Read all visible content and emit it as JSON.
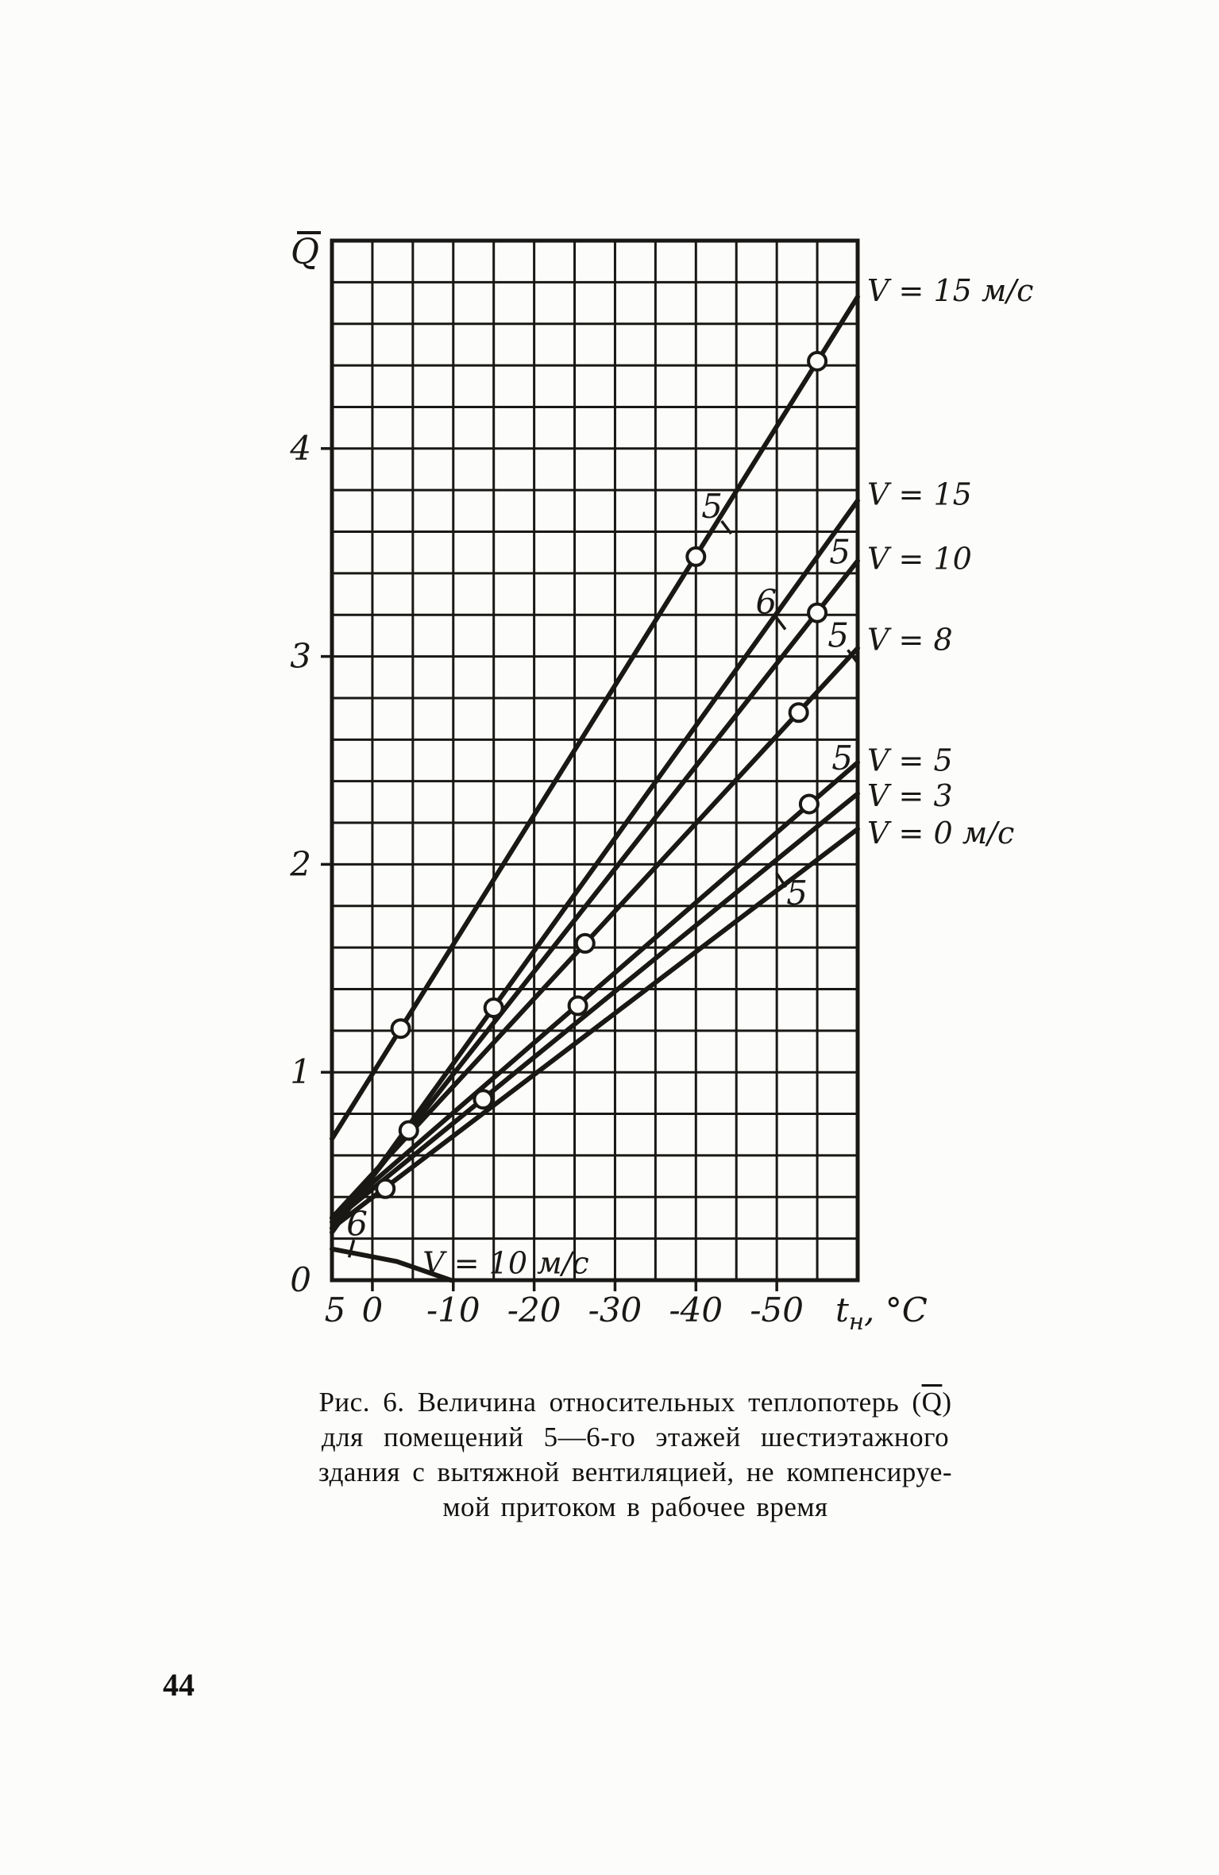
{
  "page": {
    "number": "44"
  },
  "caption": {
    "line1_before": "Рис. 6. Величина относительных теплопотерь (",
    "line1_q": "Q",
    "line1_after": ")",
    "line2": "для помещений 5—6-го этажей шестиэтажного",
    "line3": "здания с вытяжной вентиляцией, не компенсируе-",
    "line4": "мой притоком в рабочее время"
  },
  "chart_data": {
    "type": "line",
    "title": "Величина относительных теплопотерь Q для помещений 5-6-го этажей",
    "ylabel": "Q",
    "ylabel_overline": true,
    "xlabel_main": "t",
    "xlabel_sub": "н",
    "xlabel_unit": ", °С",
    "x_range": [
      5,
      -60
    ],
    "y_range": [
      0,
      5
    ],
    "grid": {
      "state": "on",
      "cols": 13,
      "rows": 25,
      "x_step_deg": 5,
      "y_step": 0.2
    },
    "x_ticks": [
      {
        "v": 5,
        "label": "5"
      },
      {
        "v": 0,
        "label": "0"
      },
      {
        "v": -10,
        "label": "-10"
      },
      {
        "v": -20,
        "label": "-20"
      },
      {
        "v": -30,
        "label": "-30"
      },
      {
        "v": -40,
        "label": "-40"
      },
      {
        "v": -50,
        "label": "-50"
      }
    ],
    "y_ticks": [
      {
        "v": 0,
        "label": "0"
      },
      {
        "v": 1,
        "label": "1"
      },
      {
        "v": 2,
        "label": "2"
      },
      {
        "v": 3,
        "label": "3"
      },
      {
        "v": 4,
        "label": "4"
      }
    ],
    "legend_position": "right-edge",
    "series": [
      {
        "name": "floor5-v15",
        "label": "V = 15 м/с",
        "label_q": 4.76,
        "points": [
          [
            5,
            0.68
          ],
          [
            -60,
            4.73
          ]
        ],
        "markers": [
          [
            -3.5,
            1.21
          ],
          [
            -40,
            3.48
          ],
          [
            -55,
            4.42
          ]
        ]
      },
      {
        "name": "floor6-v15",
        "label": "V = 15",
        "label_q": 3.78,
        "points": [
          [
            5,
            0.23
          ],
          [
            -60,
            3.75
          ]
        ],
        "markers": [
          [
            -15,
            1.31
          ]
        ]
      },
      {
        "name": "floor5-v10",
        "label": "V = 10",
        "label_q": 3.47,
        "points": [
          [
            5,
            0.25
          ],
          [
            -60,
            3.46
          ]
        ],
        "markers": [
          [
            -4.5,
            0.72
          ],
          [
            -55,
            3.21
          ]
        ]
      },
      {
        "name": "floor5-v8",
        "label": "V = 8",
        "label_q": 3.08,
        "points": [
          [
            5,
            0.3
          ],
          [
            -60,
            3.04
          ]
        ],
        "markers": [
          [
            -26.3,
            1.62
          ],
          [
            -52.7,
            2.73
          ]
        ]
      },
      {
        "name": "floor5-v5",
        "label": "V = 5",
        "label_q": 2.5,
        "points": [
          [
            5,
            0.3
          ],
          [
            -60,
            2.49
          ]
        ],
        "markers": [
          [
            -25.4,
            1.32
          ],
          [
            -54,
            2.29
          ]
        ]
      },
      {
        "name": "floor-v3",
        "label": "V = 3",
        "label_q": 2.33,
        "points": [
          [
            5,
            0.28
          ],
          [
            -60,
            2.34
          ]
        ],
        "markers": [
          [
            -13.7,
            0.87
          ]
        ]
      },
      {
        "name": "floor-v0",
        "label": "V = 0 м/с",
        "label_q": 2.15,
        "points": [
          [
            5,
            0.25
          ],
          [
            -60,
            2.17
          ]
        ],
        "markers": [
          [
            -1.6,
            0.44
          ]
        ]
      },
      {
        "name": "floor6-v10-bottom",
        "label": "",
        "label_q": null,
        "points": [
          [
            5,
            0.15
          ],
          [
            -3,
            0.09
          ],
          [
            -9.7,
            0
          ]
        ],
        "markers": []
      }
    ],
    "annotations": [
      {
        "text": "5",
        "t": -42,
        "q": 3.72,
        "leader": "down-right"
      },
      {
        "text": "6",
        "t": -48.7,
        "q": 3.26,
        "leader": "down-right"
      },
      {
        "text": "5",
        "t": -57.8,
        "q": 3.5,
        "leader": "none"
      },
      {
        "text": "5",
        "t": -57.6,
        "q": 3.1,
        "leader": "down-right"
      },
      {
        "text": "5",
        "t": -58.1,
        "q": 2.51,
        "leader": "none"
      },
      {
        "text": "5",
        "t": -52.5,
        "q": 1.86,
        "leader": "up-left"
      },
      {
        "text": "6",
        "t": 1.9,
        "q": 0.27,
        "leader": "down"
      },
      {
        "text": "V = 10 м/с",
        "t": -16.5,
        "q": 0.085,
        "leader": "none"
      }
    ],
    "ink_color": "#1a1815"
  }
}
